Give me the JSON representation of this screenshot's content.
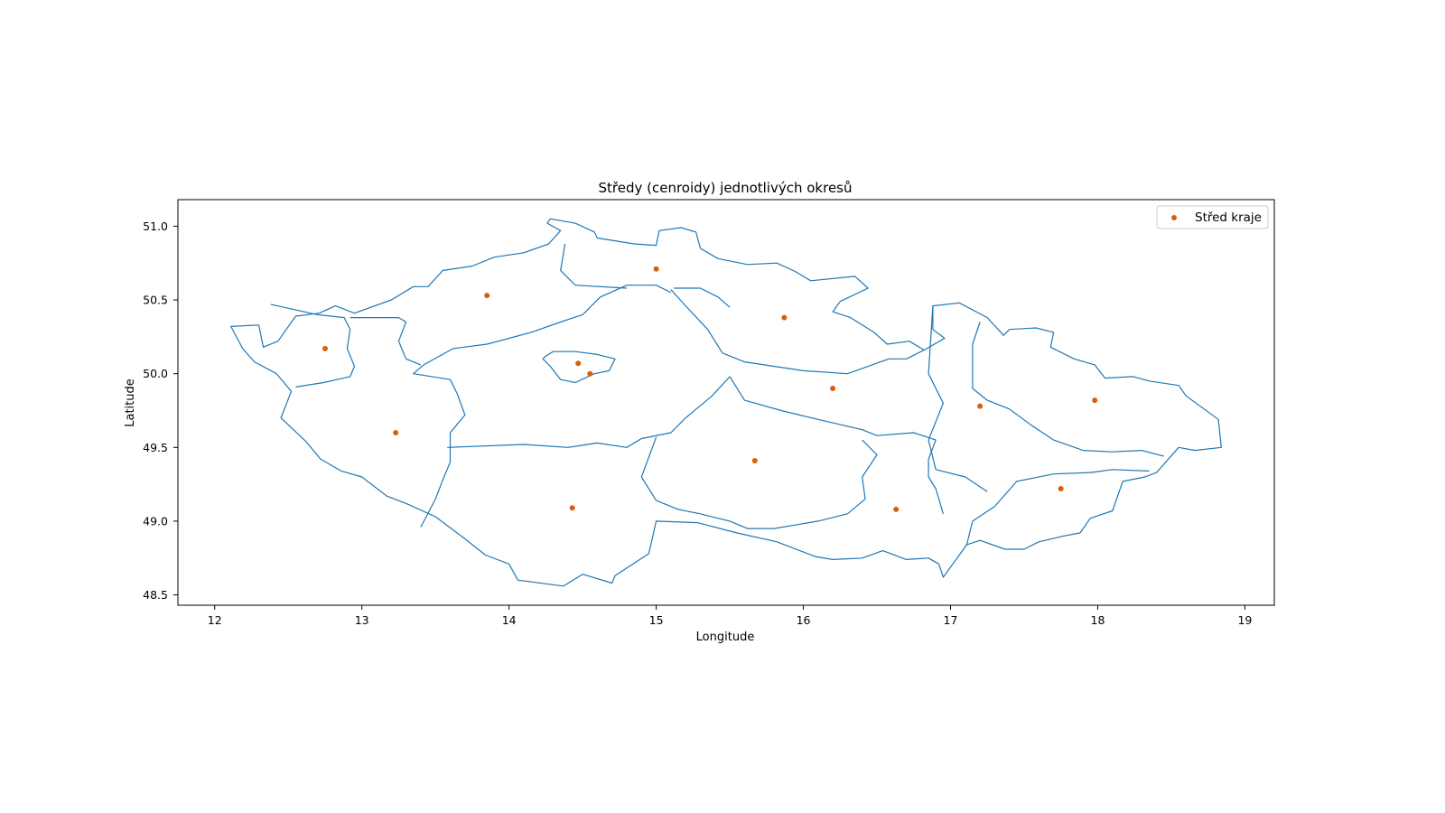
{
  "chart_data": {
    "type": "scatter",
    "title": "Středy (cenroidy) jednotlivých okresů",
    "xlabel": "Longitude",
    "ylabel": "Latitude",
    "xlim": [
      11.75,
      19.2
    ],
    "ylim": [
      48.43,
      51.18
    ],
    "xticks": [
      12,
      13,
      14,
      15,
      16,
      17,
      18,
      19
    ],
    "yticks": [
      48.5,
      49.0,
      49.5,
      50.0,
      50.5,
      51.0
    ],
    "ytick_labels": [
      "48.5",
      "49.0",
      "49.5",
      "50.0",
      "50.5",
      "51.0"
    ],
    "grid": false,
    "legend_position": "top-right",
    "colors": {
      "boundary": "#1f77b4",
      "centroid": "#d95f0e"
    },
    "boundaries": {
      "country": [
        [
          12.11,
          50.32
        ],
        [
          12.3,
          50.33
        ],
        [
          12.33,
          50.18
        ],
        [
          12.43,
          50.22
        ],
        [
          12.55,
          50.39
        ],
        [
          12.71,
          50.41
        ],
        [
          12.82,
          50.46
        ],
        [
          12.95,
          50.41
        ],
        [
          13.2,
          50.5
        ],
        [
          13.35,
          50.59
        ],
        [
          13.45,
          50.59
        ],
        [
          13.55,
          50.7
        ],
        [
          13.75,
          50.73
        ],
        [
          13.9,
          50.79
        ],
        [
          14.1,
          50.82
        ],
        [
          14.27,
          50.88
        ],
        [
          14.35,
          50.97
        ],
        [
          14.26,
          51.02
        ],
        [
          14.28,
          51.05
        ],
        [
          14.45,
          51.02
        ],
        [
          14.58,
          50.96
        ],
        [
          14.6,
          50.92
        ],
        [
          14.85,
          50.88
        ],
        [
          15.0,
          50.87
        ],
        [
          15.02,
          50.97
        ],
        [
          15.17,
          50.99
        ],
        [
          15.27,
          50.96
        ],
        [
          15.3,
          50.85
        ],
        [
          15.42,
          50.78
        ],
        [
          15.62,
          50.74
        ],
        [
          15.82,
          50.75
        ],
        [
          15.95,
          50.69
        ],
        [
          16.05,
          50.63
        ],
        [
          16.35,
          50.66
        ],
        [
          16.44,
          50.58
        ],
        [
          16.25,
          50.49
        ],
        [
          16.2,
          50.42
        ],
        [
          16.32,
          50.38
        ],
        [
          16.48,
          50.28
        ],
        [
          16.57,
          50.2
        ],
        [
          16.72,
          50.22
        ],
        [
          16.82,
          50.16
        ],
        [
          16.96,
          50.24
        ],
        [
          16.88,
          50.3
        ],
        [
          16.88,
          50.46
        ],
        [
          17.06,
          50.48
        ],
        [
          17.25,
          50.38
        ],
        [
          17.36,
          50.26
        ],
        [
          17.4,
          50.3
        ],
        [
          17.58,
          50.31
        ],
        [
          17.7,
          50.28
        ],
        [
          17.68,
          50.18
        ],
        [
          17.84,
          50.1
        ],
        [
          17.98,
          50.06
        ],
        [
          18.05,
          49.97
        ],
        [
          18.24,
          49.98
        ],
        [
          18.35,
          49.95
        ],
        [
          18.55,
          49.92
        ],
        [
          18.6,
          49.85
        ],
        [
          18.82,
          49.69
        ],
        [
          18.84,
          49.5
        ],
        [
          18.66,
          49.48
        ],
        [
          18.55,
          49.5
        ],
        [
          18.4,
          49.33
        ],
        [
          18.32,
          49.3
        ],
        [
          18.17,
          49.27
        ],
        [
          18.1,
          49.07
        ],
        [
          17.95,
          49.02
        ],
        [
          17.88,
          48.92
        ],
        [
          17.77,
          48.9
        ],
        [
          17.6,
          48.86
        ],
        [
          17.5,
          48.81
        ],
        [
          17.37,
          48.81
        ],
        [
          17.2,
          48.87
        ],
        [
          17.11,
          48.84
        ],
        [
          16.95,
          48.62
        ],
        [
          16.92,
          48.71
        ],
        [
          16.85,
          48.75
        ],
        [
          16.7,
          48.74
        ],
        [
          16.54,
          48.8
        ],
        [
          16.4,
          48.75
        ],
        [
          16.2,
          48.74
        ],
        [
          16.08,
          48.76
        ],
        [
          15.82,
          48.86
        ],
        [
          15.55,
          48.92
        ],
        [
          15.28,
          48.99
        ],
        [
          15.0,
          49.0
        ],
        [
          14.95,
          48.78
        ],
        [
          14.72,
          48.63
        ],
        [
          14.7,
          48.58
        ],
        [
          14.5,
          48.64
        ],
        [
          14.37,
          48.56
        ],
        [
          14.06,
          48.6
        ],
        [
          14.0,
          48.71
        ],
        [
          13.84,
          48.77
        ],
        [
          13.7,
          48.88
        ],
        [
          13.5,
          49.03
        ],
        [
          13.3,
          49.12
        ],
        [
          13.17,
          49.17
        ],
        [
          13.0,
          49.3
        ],
        [
          12.86,
          49.34
        ],
        [
          12.72,
          49.42
        ],
        [
          12.62,
          49.54
        ],
        [
          12.45,
          49.7
        ],
        [
          12.52,
          49.88
        ],
        [
          12.42,
          50.0
        ],
        [
          12.27,
          50.08
        ],
        [
          12.19,
          50.17
        ],
        [
          12.11,
          50.32
        ]
      ],
      "internal": [
        [
          [
            12.38,
            50.47
          ],
          [
            12.7,
            50.4
          ],
          [
            12.88,
            50.38
          ],
          [
            12.92,
            50.3
          ],
          [
            12.9,
            50.17
          ],
          [
            12.95,
            50.05
          ],
          [
            12.92,
            49.98
          ],
          [
            12.74,
            49.94
          ],
          [
            12.55,
            49.91
          ]
        ],
        [
          [
            12.92,
            50.38
          ],
          [
            13.25,
            50.38
          ],
          [
            13.3,
            50.35
          ],
          [
            13.25,
            50.22
          ],
          [
            13.3,
            50.1
          ],
          [
            13.4,
            50.06
          ]
        ],
        [
          [
            13.42,
            50.06
          ],
          [
            13.35,
            50.0
          ],
          [
            13.6,
            49.96
          ],
          [
            13.65,
            49.86
          ],
          [
            13.7,
            49.72
          ],
          [
            13.6,
            49.6
          ],
          [
            13.6,
            49.4
          ],
          [
            13.55,
            49.28
          ],
          [
            13.5,
            49.15
          ],
          [
            13.4,
            48.96
          ]
        ],
        [
          [
            13.58,
            49.5
          ],
          [
            14.1,
            49.52
          ],
          [
            14.4,
            49.5
          ],
          [
            14.6,
            49.53
          ],
          [
            14.8,
            49.5
          ],
          [
            14.9,
            49.56
          ],
          [
            15.1,
            49.6
          ],
          [
            15.2,
            49.7
          ],
          [
            15.38,
            49.85
          ],
          [
            15.5,
            49.98
          ]
        ],
        [
          [
            13.42,
            50.06
          ],
          [
            13.62,
            50.17
          ],
          [
            13.85,
            50.2
          ],
          [
            14.15,
            50.28
          ],
          [
            14.35,
            50.35
          ],
          [
            14.5,
            50.4
          ],
          [
            14.62,
            50.52
          ],
          [
            14.8,
            50.6
          ],
          [
            15.0,
            50.6
          ],
          [
            15.1,
            50.55
          ]
        ],
        [
          [
            14.38,
            50.88
          ],
          [
            14.35,
            50.7
          ],
          [
            14.45,
            50.6
          ],
          [
            14.8,
            50.58
          ]
        ],
        [
          [
            15.12,
            50.58
          ],
          [
            15.3,
            50.58
          ],
          [
            15.42,
            50.52
          ],
          [
            15.5,
            50.45
          ]
        ],
        [
          [
            15.1,
            50.57
          ],
          [
            15.2,
            50.46
          ],
          [
            15.35,
            50.3
          ],
          [
            15.45,
            50.14
          ],
          [
            15.6,
            50.08
          ],
          [
            16.0,
            50.02
          ],
          [
            16.3,
            50.0
          ],
          [
            16.58,
            50.1
          ],
          [
            16.7,
            50.1
          ],
          [
            16.82,
            50.16
          ]
        ],
        [
          [
            15.5,
            49.98
          ],
          [
            15.6,
            49.82
          ],
          [
            15.85,
            49.75
          ],
          [
            16.1,
            49.69
          ],
          [
            16.4,
            49.62
          ],
          [
            16.5,
            49.58
          ],
          [
            16.75,
            49.6
          ],
          [
            16.9,
            49.55
          ],
          [
            16.85,
            49.42
          ],
          [
            16.85,
            49.3
          ],
          [
            16.9,
            49.22
          ],
          [
            16.95,
            49.05
          ]
        ],
        [
          [
            15.0,
            49.57
          ],
          [
            14.9,
            49.3
          ],
          [
            15.0,
            49.14
          ],
          [
            15.15,
            49.08
          ],
          [
            15.3,
            49.05
          ],
          [
            15.5,
            49.0
          ],
          [
            15.62,
            48.95
          ],
          [
            15.8,
            48.95
          ],
          [
            16.1,
            49.0
          ],
          [
            16.3,
            49.05
          ],
          [
            16.42,
            49.15
          ],
          [
            16.4,
            49.3
          ],
          [
            16.5,
            49.45
          ],
          [
            16.4,
            49.55
          ]
        ],
        [
          [
            16.88,
            50.46
          ],
          [
            16.85,
            50.0
          ],
          [
            16.95,
            49.8
          ],
          [
            16.85,
            49.55
          ],
          [
            16.9,
            49.35
          ],
          [
            17.1,
            49.3
          ],
          [
            17.25,
            49.2
          ]
        ],
        [
          [
            17.2,
            50.35
          ],
          [
            17.15,
            50.2
          ],
          [
            17.15,
            49.9
          ],
          [
            17.25,
            49.82
          ],
          [
            17.4,
            49.76
          ],
          [
            17.55,
            49.65
          ],
          [
            17.7,
            49.55
          ],
          [
            17.9,
            49.48
          ],
          [
            18.1,
            49.47
          ],
          [
            18.3,
            49.48
          ],
          [
            18.45,
            49.44
          ]
        ],
        [
          [
            17.11,
            48.84
          ],
          [
            17.15,
            49.0
          ],
          [
            17.3,
            49.1
          ],
          [
            17.45,
            49.27
          ],
          [
            17.7,
            49.32
          ],
          [
            17.95,
            49.33
          ],
          [
            18.1,
            49.35
          ],
          [
            18.35,
            49.34
          ]
        ]
      ],
      "prague": [
        [
          14.25,
          50.12
        ],
        [
          14.3,
          50.15
        ],
        [
          14.45,
          50.15
        ],
        [
          14.6,
          50.13
        ],
        [
          14.72,
          50.1
        ],
        [
          14.68,
          50.02
        ],
        [
          14.58,
          50.0
        ],
        [
          14.45,
          49.94
        ],
        [
          14.35,
          49.96
        ],
        [
          14.28,
          50.05
        ],
        [
          14.23,
          50.1
        ],
        [
          14.25,
          50.12
        ]
      ]
    },
    "legend": [
      "Střed kraje"
    ],
    "series": [
      {
        "name": "Střed kraje",
        "x": [
          12.75,
          13.85,
          15.0,
          15.87,
          14.47,
          14.55,
          16.2,
          17.2,
          17.98,
          13.23,
          14.43,
          15.67,
          16.63,
          17.75
        ],
        "y": [
          50.17,
          50.53,
          50.71,
          50.38,
          50.07,
          50.0,
          49.9,
          49.78,
          49.82,
          49.6,
          49.09,
          49.41,
          49.08,
          49.22
        ]
      }
    ]
  }
}
